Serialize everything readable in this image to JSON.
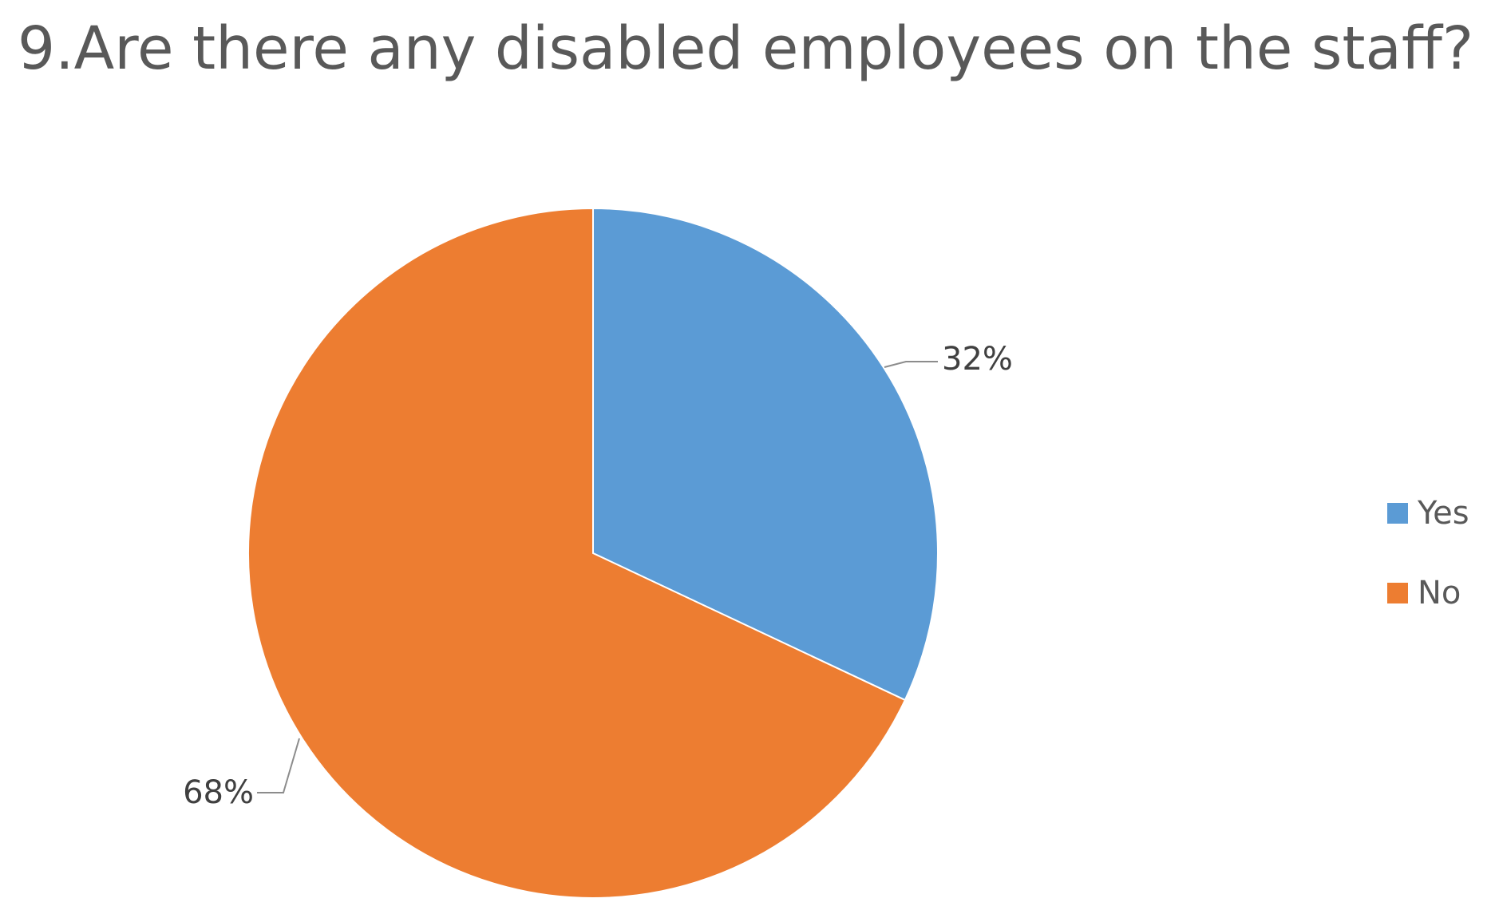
{
  "chart_data": {
    "type": "pie",
    "title": "9.Are there any disabled employees on the staff?",
    "categories": [
      "Yes",
      "No"
    ],
    "values": [
      32,
      68
    ],
    "data_labels": [
      "32%",
      "68%"
    ],
    "colors": [
      "#5b9bd5",
      "#ed7d31"
    ],
    "legend": {
      "placement": "right",
      "entries": [
        "Yes",
        "No"
      ]
    }
  }
}
